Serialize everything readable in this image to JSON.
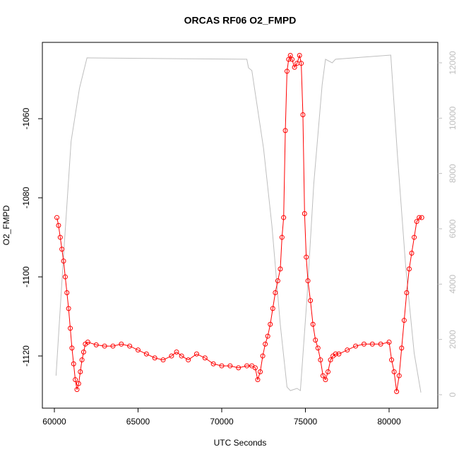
{
  "chart_data": {
    "type": "line",
    "title": "ORCAS RF06 O2_FMPD",
    "x_label": "UTC Seconds",
    "y_label": "O2_FMPD",
    "xlim": [
      59283,
      82911
    ],
    "ylim": [
      -1133.2,
      -1040.7
    ],
    "y2lim": [
      -485,
      12740
    ],
    "xticks": [
      60000,
      65000,
      70000,
      75000,
      80000
    ],
    "yticks": [
      -1120,
      -1100,
      -1080,
      -1060
    ],
    "y2ticks": [
      0,
      2000,
      4000,
      6000,
      8000,
      10000,
      12000
    ],
    "series": [
      {
        "name": "O2_FMPD",
        "color": "#ff0000",
        "markers": true,
        "x": [
          60150,
          60250,
          60350,
          60450,
          60550,
          60650,
          60750,
          60850,
          60950,
          61050,
          61150,
          61250,
          61350,
          61450,
          61550,
          61650,
          61750,
          61850,
          62000,
          62500,
          63000,
          63500,
          64000,
          64500,
          65000,
          65500,
          66000,
          66500,
          67000,
          67300,
          67600,
          68000,
          68500,
          69000,
          69500,
          70000,
          70500,
          71000,
          71500,
          71800,
          72000,
          72150,
          72300,
          72450,
          72600,
          72750,
          72900,
          73050,
          73200,
          73350,
          73500,
          73600,
          73700,
          73800,
          73900,
          74000,
          74100,
          74200,
          74350,
          74500,
          74650,
          74750,
          74850,
          74950,
          75050,
          75150,
          75300,
          75450,
          75600,
          75750,
          75900,
          76050,
          76200,
          76350,
          76500,
          76650,
          76800,
          77000,
          77500,
          78000,
          78500,
          79000,
          79500,
          80000,
          80150,
          80300,
          80450,
          80600,
          80750,
          80900,
          81050,
          81200,
          81350,
          81500,
          81650,
          81800,
          81950
        ],
        "values": [
          -1085,
          -1087,
          -1090,
          -1093,
          -1096,
          -1100,
          -1104,
          -1108,
          -1113,
          -1118,
          -1122,
          -1126,
          -1128.5,
          -1127,
          -1124,
          -1121,
          -1119,
          -1117,
          -1116.5,
          -1117.2,
          -1117.5,
          -1117.5,
          -1117,
          -1117.5,
          -1118.5,
          -1119.5,
          -1120.5,
          -1121,
          -1120,
          -1119,
          -1120,
          -1121,
          -1119.5,
          -1120.5,
          -1122,
          -1122.5,
          -1122.5,
          -1123,
          -1122.5,
          -1122.5,
          -1123,
          -1126,
          -1124,
          -1120,
          -1117,
          -1115,
          -1112,
          -1108,
          -1104,
          -1101,
          -1098,
          -1090,
          -1085,
          -1063,
          -1048,
          -1045,
          -1044,
          -1045,
          -1047,
          -1046,
          -1044,
          -1046,
          -1059,
          -1084,
          -1095,
          -1101,
          -1106,
          -1112,
          -1116,
          -1118,
          -1121,
          -1125,
          -1126,
          -1124,
          -1121,
          -1120,
          -1119.5,
          -1119.5,
          -1118.5,
          -1117.5,
          -1117,
          -1117,
          -1117,
          -1116.5,
          -1121,
          -1124,
          -1129,
          -1125,
          -1118,
          -1111,
          -1104,
          -1098,
          -1094,
          -1090,
          -1086,
          -1085,
          -1085
        ]
      },
      {
        "color": "#bebebe",
        "axis": "y2",
        "markers": false,
        "x": [
          60100,
          60500,
          61000,
          61500,
          61950,
          71500,
          71600,
          71800,
          72500,
          73000,
          73500,
          73900,
          74100,
          74500,
          74700,
          75100,
          75500,
          76000,
          76200,
          76600,
          76800,
          80100,
          80500,
          81000,
          81500,
          81900
        ],
        "values": [
          690,
          4570,
          9165,
          11080,
          12180,
          12130,
          11820,
          11720,
          8900,
          6100,
          2530,
          280,
          150,
          230,
          150,
          3550,
          7630,
          11210,
          12130,
          12000,
          12130,
          12280,
          8650,
          4570,
          1500,
          80
        ]
      }
    ]
  }
}
